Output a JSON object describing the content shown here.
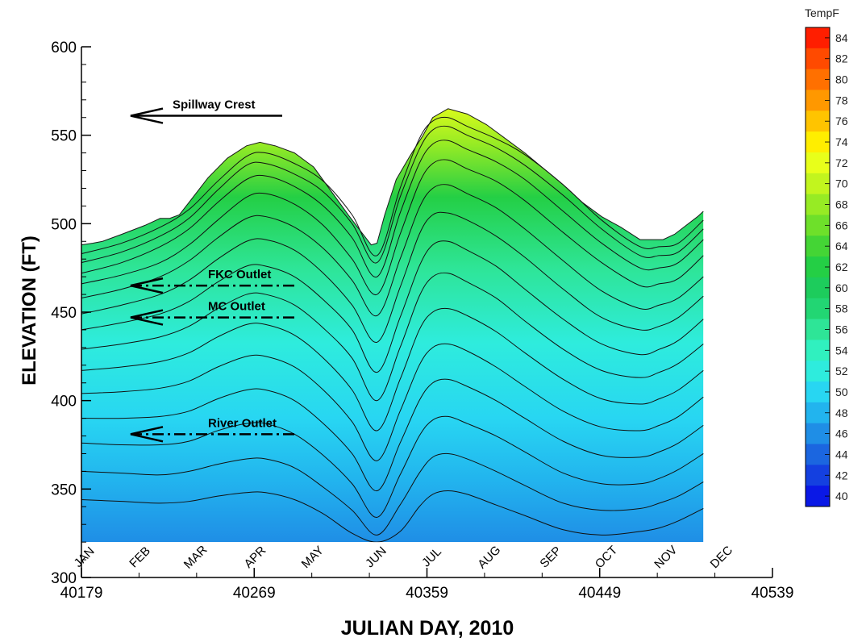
{
  "chart_data": {
    "type": "heatmap",
    "xlabel": "JULIAN DAY, 2010",
    "ylabel": "ELEVATION (FT)",
    "xlim": [
      40179,
      40539
    ],
    "ylim": [
      300,
      600
    ],
    "x_ticks": [
      40179,
      40269,
      40359,
      40449,
      40539
    ],
    "y_ticks": [
      300,
      350,
      400,
      450,
      500,
      550,
      600
    ],
    "grid": false,
    "colorbar": {
      "title": "TempF",
      "placement": "right",
      "levels": [
        84,
        82,
        80,
        78,
        76,
        74,
        72,
        70,
        68,
        66,
        64,
        62,
        60,
        58,
        56,
        54,
        52,
        50,
        48,
        46,
        44,
        42,
        40
      ],
      "colors": [
        "#ff1e00",
        "#ff4a00",
        "#ff7000",
        "#ff9800",
        "#ffc400",
        "#ffee00",
        "#e8ff1a",
        "#c2f51e",
        "#97eb24",
        "#6ee02a",
        "#44d535",
        "#24cf45",
        "#1dcc5c",
        "#22d673",
        "#2ee597",
        "#30f0bf",
        "#2eecdd",
        "#28d6f2",
        "#22b4ee",
        "#1f8ee6",
        "#1b66e0",
        "#1440e0",
        "#0a18e6"
      ]
    },
    "months": [
      {
        "label": "JAN",
        "day": 40181
      },
      {
        "label": "FEB",
        "day": 40210
      },
      {
        "label": "MAR",
        "day": 40239
      },
      {
        "label": "APR",
        "day": 40270
      },
      {
        "label": "MAY",
        "day": 40300
      },
      {
        "label": "JUN",
        "day": 40333
      },
      {
        "label": "JUL",
        "day": 40362
      },
      {
        "label": "AUG",
        "day": 40392
      },
      {
        "label": "SEP",
        "day": 40424
      },
      {
        "label": "OCT",
        "day": 40453
      },
      {
        "label": "NOV",
        "day": 40484
      },
      {
        "label": "DEC",
        "day": 40513
      }
    ],
    "annotations": [
      {
        "label": "Spillway Crest",
        "elevation": 561,
        "style": "solid"
      },
      {
        "label": "FKC Outlet",
        "elevation": 465,
        "style": "dashdot"
      },
      {
        "label": "MC Outlet",
        "elevation": 447,
        "style": "dashdot"
      },
      {
        "label": "River Outlet",
        "elevation": 381,
        "style": "dashdot"
      }
    ],
    "water_surface": {
      "day": [
        40179,
        40185,
        40190,
        40200,
        40212,
        40220,
        40225,
        40230,
        40235,
        40245,
        40255,
        40265,
        40272,
        40280,
        40290,
        40300,
        40310,
        40318,
        40325,
        40330,
        40333,
        40337,
        40343,
        40350,
        40357,
        40362,
        40370,
        40380,
        40390,
        40400,
        40410,
        40420,
        40430,
        40440,
        40450,
        40460,
        40470,
        40476,
        40482,
        40488,
        40494,
        40500,
        40503
      ],
      "elevation": [
        488,
        489,
        490,
        494,
        499,
        503,
        503,
        505,
        512,
        526,
        537,
        544,
        546,
        544,
        540,
        532,
        517,
        505,
        495,
        488,
        489,
        505,
        525,
        538,
        550,
        560,
        565,
        562,
        556,
        548,
        540,
        531,
        522,
        512,
        504,
        498,
        491,
        491,
        491,
        494,
        499,
        504,
        507
      ]
    },
    "isotherms": [
      {
        "day": [
          40179,
          40200,
          40220,
          40235,
          40250,
          40265,
          40275,
          40290,
          40305,
          40320,
          40333,
          40345,
          40355,
          40362,
          40370,
          40380,
          40395,
          40410,
          40430,
          40450,
          40470,
          40480,
          40490,
          40503
        ],
        "elevation": [
          483,
          489,
          498,
          508,
          524,
          538,
          540,
          534,
          524,
          505,
          482,
          520,
          548,
          558,
          560,
          555,
          548,
          539,
          522,
          502,
          487,
          487,
          489,
          502
        ]
      },
      {
        "day": [
          40179,
          40200,
          40220,
          40235,
          40250,
          40265,
          40275,
          40290,
          40305,
          40320,
          40333,
          40345,
          40355,
          40362,
          40370,
          40380,
          40395,
          40410,
          40430,
          40450,
          40470,
          40480,
          40490,
          40503
        ],
        "elevation": [
          478,
          484,
          493,
          503,
          519,
          533,
          534,
          528,
          518,
          500,
          478,
          515,
          542,
          553,
          555,
          550,
          543,
          533,
          516,
          497,
          482,
          482,
          484,
          497
        ]
      },
      {
        "day": [
          40179,
          40200,
          40220,
          40235,
          40250,
          40265,
          40275,
          40290,
          40305,
          40320,
          40333,
          40345,
          40355,
          40362,
          40370,
          40380,
          40395,
          40410,
          40430,
          40450,
          40470,
          40480,
          40490,
          40503
        ],
        "elevation": [
          472,
          478,
          487,
          497,
          512,
          525,
          527,
          521,
          510,
          492,
          470,
          506,
          534,
          545,
          547,
          542,
          535,
          525,
          507,
          489,
          475,
          475,
          478,
          491
        ]
      },
      {
        "day": [
          40179,
          40200,
          40220,
          40235,
          40250,
          40265,
          40275,
          40290,
          40305,
          40320,
          40333,
          40345,
          40355,
          40362,
          40370,
          40380,
          40395,
          40410,
          40430,
          40450,
          40470,
          40480,
          40490,
          40503
        ],
        "elevation": [
          466,
          471,
          478,
          488,
          502,
          515,
          517,
          511,
          499,
          480,
          460,
          494,
          523,
          534,
          536,
          531,
          524,
          513,
          495,
          478,
          465,
          466,
          469,
          482
        ]
      },
      {
        "day": [
          40179,
          40200,
          40220,
          40235,
          40250,
          40265,
          40275,
          40290,
          40305,
          40320,
          40333,
          40345,
          40355,
          40362,
          40370,
          40380,
          40395,
          40410,
          40430,
          40450,
          40470,
          40480,
          40490,
          40503
        ],
        "elevation": [
          458,
          463,
          470,
          479,
          492,
          503,
          504,
          498,
          486,
          468,
          448,
          480,
          509,
          520,
          522,
          517,
          509,
          497,
          479,
          462,
          452,
          454,
          458,
          470
        ]
      },
      {
        "day": [
          40179,
          40200,
          40220,
          40235,
          40250,
          40265,
          40275,
          40290,
          40305,
          40320,
          40333,
          40345,
          40355,
          40362,
          40370,
          40380,
          40395,
          40410,
          40430,
          40450,
          40470,
          40480,
          40490,
          40503
        ],
        "elevation": [
          449,
          454,
          460,
          468,
          480,
          490,
          491,
          485,
          472,
          454,
          433,
          464,
          494,
          505,
          506,
          502,
          493,
          481,
          463,
          447,
          440,
          442,
          447,
          459
        ]
      },
      {
        "day": [
          40179,
          40200,
          40220,
          40235,
          40250,
          40265,
          40275,
          40290,
          40305,
          40320,
          40333,
          40345,
          40355,
          40362,
          40370,
          40380,
          40395,
          40410,
          40430,
          40450,
          40470,
          40480,
          40490,
          40503
        ],
        "elevation": [
          440,
          444,
          449,
          456,
          467,
          476,
          476,
          470,
          457,
          440,
          416,
          447,
          476,
          488,
          490,
          485,
          476,
          463,
          446,
          432,
          426,
          429,
          434,
          446
        ]
      },
      {
        "day": [
          40179,
          40200,
          40220,
          40235,
          40250,
          40265,
          40275,
          40290,
          40305,
          40320,
          40333,
          40345,
          40355,
          40362,
          40370,
          40380,
          40395,
          40410,
          40430,
          40450,
          40470,
          40480,
          40490,
          40503
        ],
        "elevation": [
          429,
          432,
          436,
          442,
          452,
          460,
          460,
          454,
          441,
          424,
          400,
          430,
          459,
          470,
          472,
          467,
          458,
          445,
          429,
          417,
          413,
          416,
          421,
          432
        ]
      },
      {
        "day": [
          40179,
          40200,
          40220,
          40235,
          40250,
          40265,
          40275,
          40290,
          40305,
          40320,
          40333,
          40345,
          40355,
          40362,
          40370,
          40380,
          40395,
          40410,
          40430,
          40450,
          40470,
          40480,
          40490,
          40503
        ],
        "elevation": [
          417,
          419,
          422,
          427,
          436,
          443,
          443,
          437,
          424,
          406,
          383,
          412,
          440,
          450,
          452,
          448,
          439,
          427,
          412,
          401,
          398,
          401,
          406,
          417
        ]
      },
      {
        "day": [
          40179,
          40200,
          40220,
          40235,
          40250,
          40265,
          40275,
          40290,
          40305,
          40320,
          40333,
          40345,
          40355,
          40362,
          40370,
          40380,
          40395,
          40410,
          40430,
          40450,
          40470,
          40480,
          40490,
          40503
        ],
        "elevation": [
          404,
          405,
          407,
          411,
          419,
          425,
          425,
          419,
          406,
          388,
          366,
          394,
          420,
          430,
          432,
          428,
          419,
          408,
          394,
          385,
          383,
          386,
          391,
          402
        ]
      },
      {
        "day": [
          40179,
          40200,
          40220,
          40235,
          40250,
          40265,
          40275,
          40290,
          40305,
          40320,
          40333,
          40345,
          40355,
          40362,
          40370,
          40380,
          40395,
          40410,
          40430,
          40450,
          40470,
          40480,
          40490,
          40503
        ],
        "elevation": [
          390,
          390,
          391,
          394,
          401,
          406,
          406,
          400,
          387,
          370,
          349,
          376,
          400,
          410,
          412,
          408,
          400,
          390,
          377,
          369,
          368,
          371,
          376,
          386
        ]
      },
      {
        "day": [
          40179,
          40200,
          40220,
          40235,
          40250,
          40265,
          40275,
          40290,
          40305,
          40320,
          40333,
          40345,
          40355,
          40362,
          40370,
          40380,
          40395,
          40410,
          40430,
          40450,
          40470,
          40480,
          40490,
          40503
        ],
        "elevation": [
          376,
          375,
          375,
          377,
          383,
          387,
          387,
          381,
          369,
          353,
          334,
          358,
          380,
          389,
          391,
          387,
          380,
          371,
          359,
          353,
          353,
          356,
          361,
          370
        ]
      },
      {
        "day": [
          40179,
          40200,
          40220,
          40235,
          40250,
          40265,
          40275,
          40290,
          40305,
          40320,
          40333,
          40345,
          40355,
          40362,
          40370,
          40380,
          40395,
          40410,
          40430,
          40450,
          40470,
          40480,
          40490,
          40503
        ],
        "elevation": [
          360,
          359,
          358,
          360,
          364,
          367,
          367,
          362,
          351,
          338,
          324,
          341,
          359,
          368,
          370,
          367,
          360,
          352,
          342,
          338,
          339,
          342,
          346,
          354
        ]
      },
      {
        "day": [
          40179,
          40200,
          40220,
          40235,
          40250,
          40265,
          40275,
          40290,
          40305,
          40320,
          40333,
          40345,
          40355,
          40362,
          40370,
          40380,
          40395,
          40410,
          40430,
          40450,
          40470,
          40480,
          40490,
          40503
        ],
        "elevation": [
          344,
          343,
          342,
          343,
          346,
          348,
          348,
          344,
          336,
          325,
          320,
          326,
          340,
          347,
          349,
          347,
          341,
          335,
          327,
          324,
          326,
          328,
          332,
          339
        ]
      }
    ]
  }
}
